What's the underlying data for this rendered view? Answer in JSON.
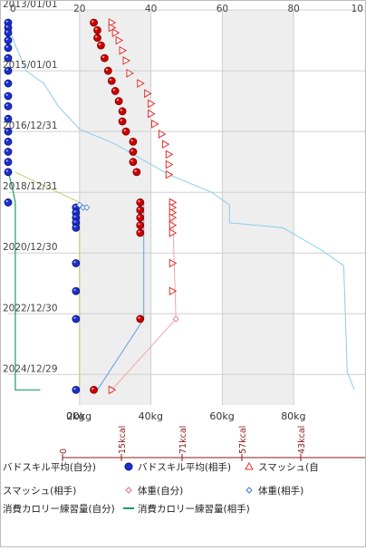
{
  "chart_data": {
    "type": "scatter",
    "title": "",
    "y_axis_dates": [
      "2013/01/01",
      "2015/01/01",
      "2016/12/31",
      "2018/12/31",
      "2020/12/30",
      "2022/12/30",
      "2024/12/29"
    ],
    "top_axis_ticks": [
      "0",
      "20",
      "40",
      "60",
      "80",
      "10"
    ],
    "bottom_kg_ticks": [
      "0kg",
      "20kg",
      "40kg",
      "60kg",
      "80kg"
    ],
    "kcal_ticks": [
      "0",
      "15kcal",
      "71kcal",
      "57kcal",
      "43kcal"
    ],
    "xlim": [
      0,
      100
    ],
    "ylim": [
      "2013/01/01",
      "2025/12/31"
    ],
    "grid": true,
    "series": [
      {
        "name": "バドスキル平均(自分)",
        "color": "#2b2b8f",
        "marker": "line",
        "points": [
          {
            "date": "2013/07",
            "value": 0
          },
          {
            "date": "2014/03",
            "value": 2
          },
          {
            "date": "2014/06",
            "value": 3
          },
          {
            "date": "2015/01",
            "value": 5
          },
          {
            "date": "2015/06",
            "value": 10
          },
          {
            "date": "2016/03",
            "value": 14
          },
          {
            "date": "2016/12",
            "value": 20
          },
          {
            "date": "2017/06",
            "value": 30
          },
          {
            "date": "2018/06",
            "value": 45
          },
          {
            "date": "2019/01",
            "value": 57
          },
          {
            "date": "2019/06",
            "value": 62
          },
          {
            "date": "2020/01",
            "value": 62
          },
          {
            "date": "2020/03",
            "value": 77
          },
          {
            "date": "2020/12",
            "value": 88
          },
          {
            "date": "2021/06",
            "value": 94
          },
          {
            "date": "2024/12",
            "value": 95
          },
          {
            "date": "2025/07",
            "value": 97
          }
        ]
      },
      {
        "name": "バドスキル平均(相手)",
        "color": "#1a2fd1",
        "marker": "circle",
        "points": [
          {
            "date": "2013/06",
            "value": 0
          },
          {
            "date": "2013/08",
            "value": 0
          },
          {
            "date": "2013/10",
            "value": 0
          },
          {
            "date": "2014/01",
            "value": 0
          },
          {
            "date": "2014/04",
            "value": 0
          },
          {
            "date": "2014/08",
            "value": 0
          },
          {
            "date": "2015/01",
            "value": 0
          },
          {
            "date": "2015/06",
            "value": 0
          },
          {
            "date": "2015/11",
            "value": 0
          },
          {
            "date": "2016/03",
            "value": 0
          },
          {
            "date": "2016/08",
            "value": 0
          },
          {
            "date": "2017/01",
            "value": 0
          },
          {
            "date": "2017/05",
            "value": 0
          },
          {
            "date": "2017/09",
            "value": 0
          },
          {
            "date": "2018/01",
            "value": 0
          },
          {
            "date": "2018/05",
            "value": 0
          },
          {
            "date": "2019/05",
            "value": 0
          },
          {
            "date": "2019/07",
            "value": 19
          },
          {
            "date": "2019/09",
            "value": 19
          },
          {
            "date": "2019/11",
            "value": 19
          },
          {
            "date": "2020/01",
            "value": 19
          },
          {
            "date": "2020/03",
            "value": 19
          },
          {
            "date": "2021/05",
            "value": 19
          },
          {
            "date": "2022/04",
            "value": 19
          },
          {
            "date": "2023/03",
            "value": 19
          },
          {
            "date": "2025/07",
            "value": 19
          }
        ]
      },
      {
        "name": "スマッシュ(自分)",
        "color": "#cc0000",
        "marker": "ball",
        "points": [
          {
            "date": "2013/06",
            "value": 24
          },
          {
            "date": "2013/09",
            "value": 25
          },
          {
            "date": "2013/12",
            "value": 25
          },
          {
            "date": "2014/03",
            "value": 26
          },
          {
            "date": "2014/08",
            "value": 27
          },
          {
            "date": "2015/01",
            "value": 28
          },
          {
            "date": "2015/05",
            "value": 29
          },
          {
            "date": "2015/09",
            "value": 30
          },
          {
            "date": "2016/01",
            "value": 31
          },
          {
            "date": "2016/05",
            "value": 32
          },
          {
            "date": "2016/09",
            "value": 32
          },
          {
            "date": "2017/01",
            "value": 33
          },
          {
            "date": "2017/05",
            "value": 35
          },
          {
            "date": "2017/09",
            "value": 35
          },
          {
            "date": "2018/01",
            "value": 35
          },
          {
            "date": "2018/05",
            "value": 36
          },
          {
            "date": "2019/05",
            "value": 37
          },
          {
            "date": "2019/08",
            "value": 37
          },
          {
            "date": "2019/11",
            "value": 37
          },
          {
            "date": "2020/02",
            "value": 37
          },
          {
            "date": "2020/05",
            "value": 37
          },
          {
            "date": "2023/03",
            "value": 37
          },
          {
            "date": "2025/07",
            "value": 24
          }
        ]
      },
      {
        "name": "スマッシュ(相手)",
        "color": "#e03030",
        "marker": "triangle",
        "points": [
          {
            "date": "2013/06",
            "value": 29
          },
          {
            "date": "2013/08",
            "value": 29
          },
          {
            "date": "2013/10",
            "value": 30
          },
          {
            "date": "2014/01",
            "value": 31
          },
          {
            "date": "2014/05",
            "value": 32
          },
          {
            "date": "2014/09",
            "value": 33
          },
          {
            "date": "2015/02",
            "value": 34
          },
          {
            "date": "2015/06",
            "value": 37
          },
          {
            "date": "2015/10",
            "value": 39
          },
          {
            "date": "2016/02",
            "value": 40
          },
          {
            "date": "2016/06",
            "value": 40
          },
          {
            "date": "2016/10",
            "value": 41
          },
          {
            "date": "2017/02",
            "value": 43
          },
          {
            "date": "2017/06",
            "value": 44
          },
          {
            "date": "2017/10",
            "value": 45
          },
          {
            "date": "2018/02",
            "value": 45
          },
          {
            "date": "2018/06",
            "value": 45
          },
          {
            "date": "2019/05",
            "value": 46
          },
          {
            "date": "2019/07",
            "value": 46
          },
          {
            "date": "2019/09",
            "value": 46
          },
          {
            "date": "2019/11",
            "value": 46
          },
          {
            "date": "2020/02",
            "value": 46
          },
          {
            "date": "2020/05",
            "value": 46
          },
          {
            "date": "2021/05",
            "value": 46
          },
          {
            "date": "2022/04",
            "value": 46
          },
          {
            "date": "2025/07",
            "value": 29
          }
        ]
      },
      {
        "name": "体重(自分)",
        "color": "#f0a0a0",
        "marker": "diamond-line",
        "points": [
          {
            "date": "2019/05",
            "value": 46
          },
          {
            "date": "2023/03",
            "value": 47
          },
          {
            "date": "2025/07",
            "value": 29
          }
        ]
      },
      {
        "name": "体重(相手)",
        "color": "#3a78d8",
        "marker": "line",
        "points": [
          {
            "date": "2019/05",
            "value": 38
          },
          {
            "date": "2023/03",
            "value": 38
          },
          {
            "date": "2025/07",
            "value": 25
          }
        ]
      },
      {
        "name": "消費カロリー練習量(自分)",
        "color": "#b5b53a",
        "marker": "line",
        "points": [
          {
            "date": "2018/05",
            "value": 2
          },
          {
            "date": "2019/05",
            "value": 20
          },
          {
            "date": "2025/07",
            "value": 20
          }
        ]
      },
      {
        "name": "消費カロリー練習量(相手)",
        "color": "#1f9a6a",
        "marker": "line",
        "points": [
          {
            "date": "2018/05",
            "value": 0
          },
          {
            "date": "2018/10",
            "value": 1
          },
          {
            "date": "2019/05",
            "value": 2
          },
          {
            "date": "2025/07",
            "value": 2
          },
          {
            "date": "2025/07",
            "value": 9
          }
        ]
      }
    ]
  },
  "legend": [
    {
      "label": "バドスキル平均(自分)",
      "color": "#2b2b8f",
      "icon": "none"
    },
    {
      "label": "バドスキル平均(相手)",
      "color": "#1a2fd1",
      "icon": "blue-dot-icon"
    },
    {
      "label": "スマッシュ(自",
      "color": "#cc0000",
      "icon": "red-triangle-icon"
    },
    {
      "label": "スマッシュ(相手)",
      "color": "#cc0000",
      "icon": "none"
    },
    {
      "label": "体重(自分)",
      "color": "#e03030",
      "icon": "pink-diamond-icon"
    },
    {
      "label": "体重(相手)",
      "color": "#3a78d8",
      "icon": "blue-diamond-icon"
    },
    {
      "label": "消費カロリー練習量(自分)",
      "color": "#b5b53a",
      "icon": "none"
    },
    {
      "label": "消費カロリー練習量(相手)",
      "color": "#1f9a6a",
      "icon": "green-line-icon"
    }
  ]
}
